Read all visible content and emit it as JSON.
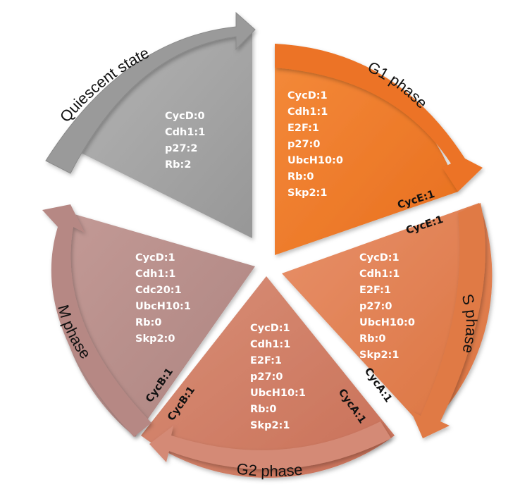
{
  "sectors": {
    "quiescent": {
      "title": "Quiescent state",
      "lines": [
        "CycD:0",
        "Cdh1:1",
        "p27:2",
        "Rb:2"
      ],
      "color": "#a2a2a2"
    },
    "g1": {
      "title": "G1 phase",
      "lines": [
        "CycD:1",
        "Cdh1:1",
        "E2F:1",
        "p27:0",
        "UbcH10:0",
        "Rb:0",
        "Skp2:1"
      ],
      "color": "#ee7a2c"
    },
    "s": {
      "title": "S phase",
      "lines": [
        "CycD:1",
        "Cdh1:1",
        "E2F:1",
        "p27:0",
        "UbcH10:0",
        "Rb:0",
        "Skp2:1"
      ],
      "color": "#e3834f"
    },
    "g2": {
      "title": "G2 phase",
      "lines": [
        "CycD:1",
        "Cdh1:1",
        "E2F:1",
        "p27:0",
        "UbcH10:1",
        "Rb:0",
        "Skp2:1"
      ],
      "color": "#cf8068"
    },
    "m": {
      "title": "M phase",
      "lines": [
        "CycD:1",
        "Cdh1:1",
        "Cdc20:1",
        "UbcH10:1",
        "Rb:0",
        "Skp2:0"
      ],
      "color": "#b88c88"
    }
  },
  "transitions": {
    "g1_end": "CycE:1",
    "s_start": "CycE:1",
    "s_end": "CycA:1",
    "g2_start": "CycA:1",
    "g2_end": "CycB:1",
    "m_start": "CycB:1"
  }
}
